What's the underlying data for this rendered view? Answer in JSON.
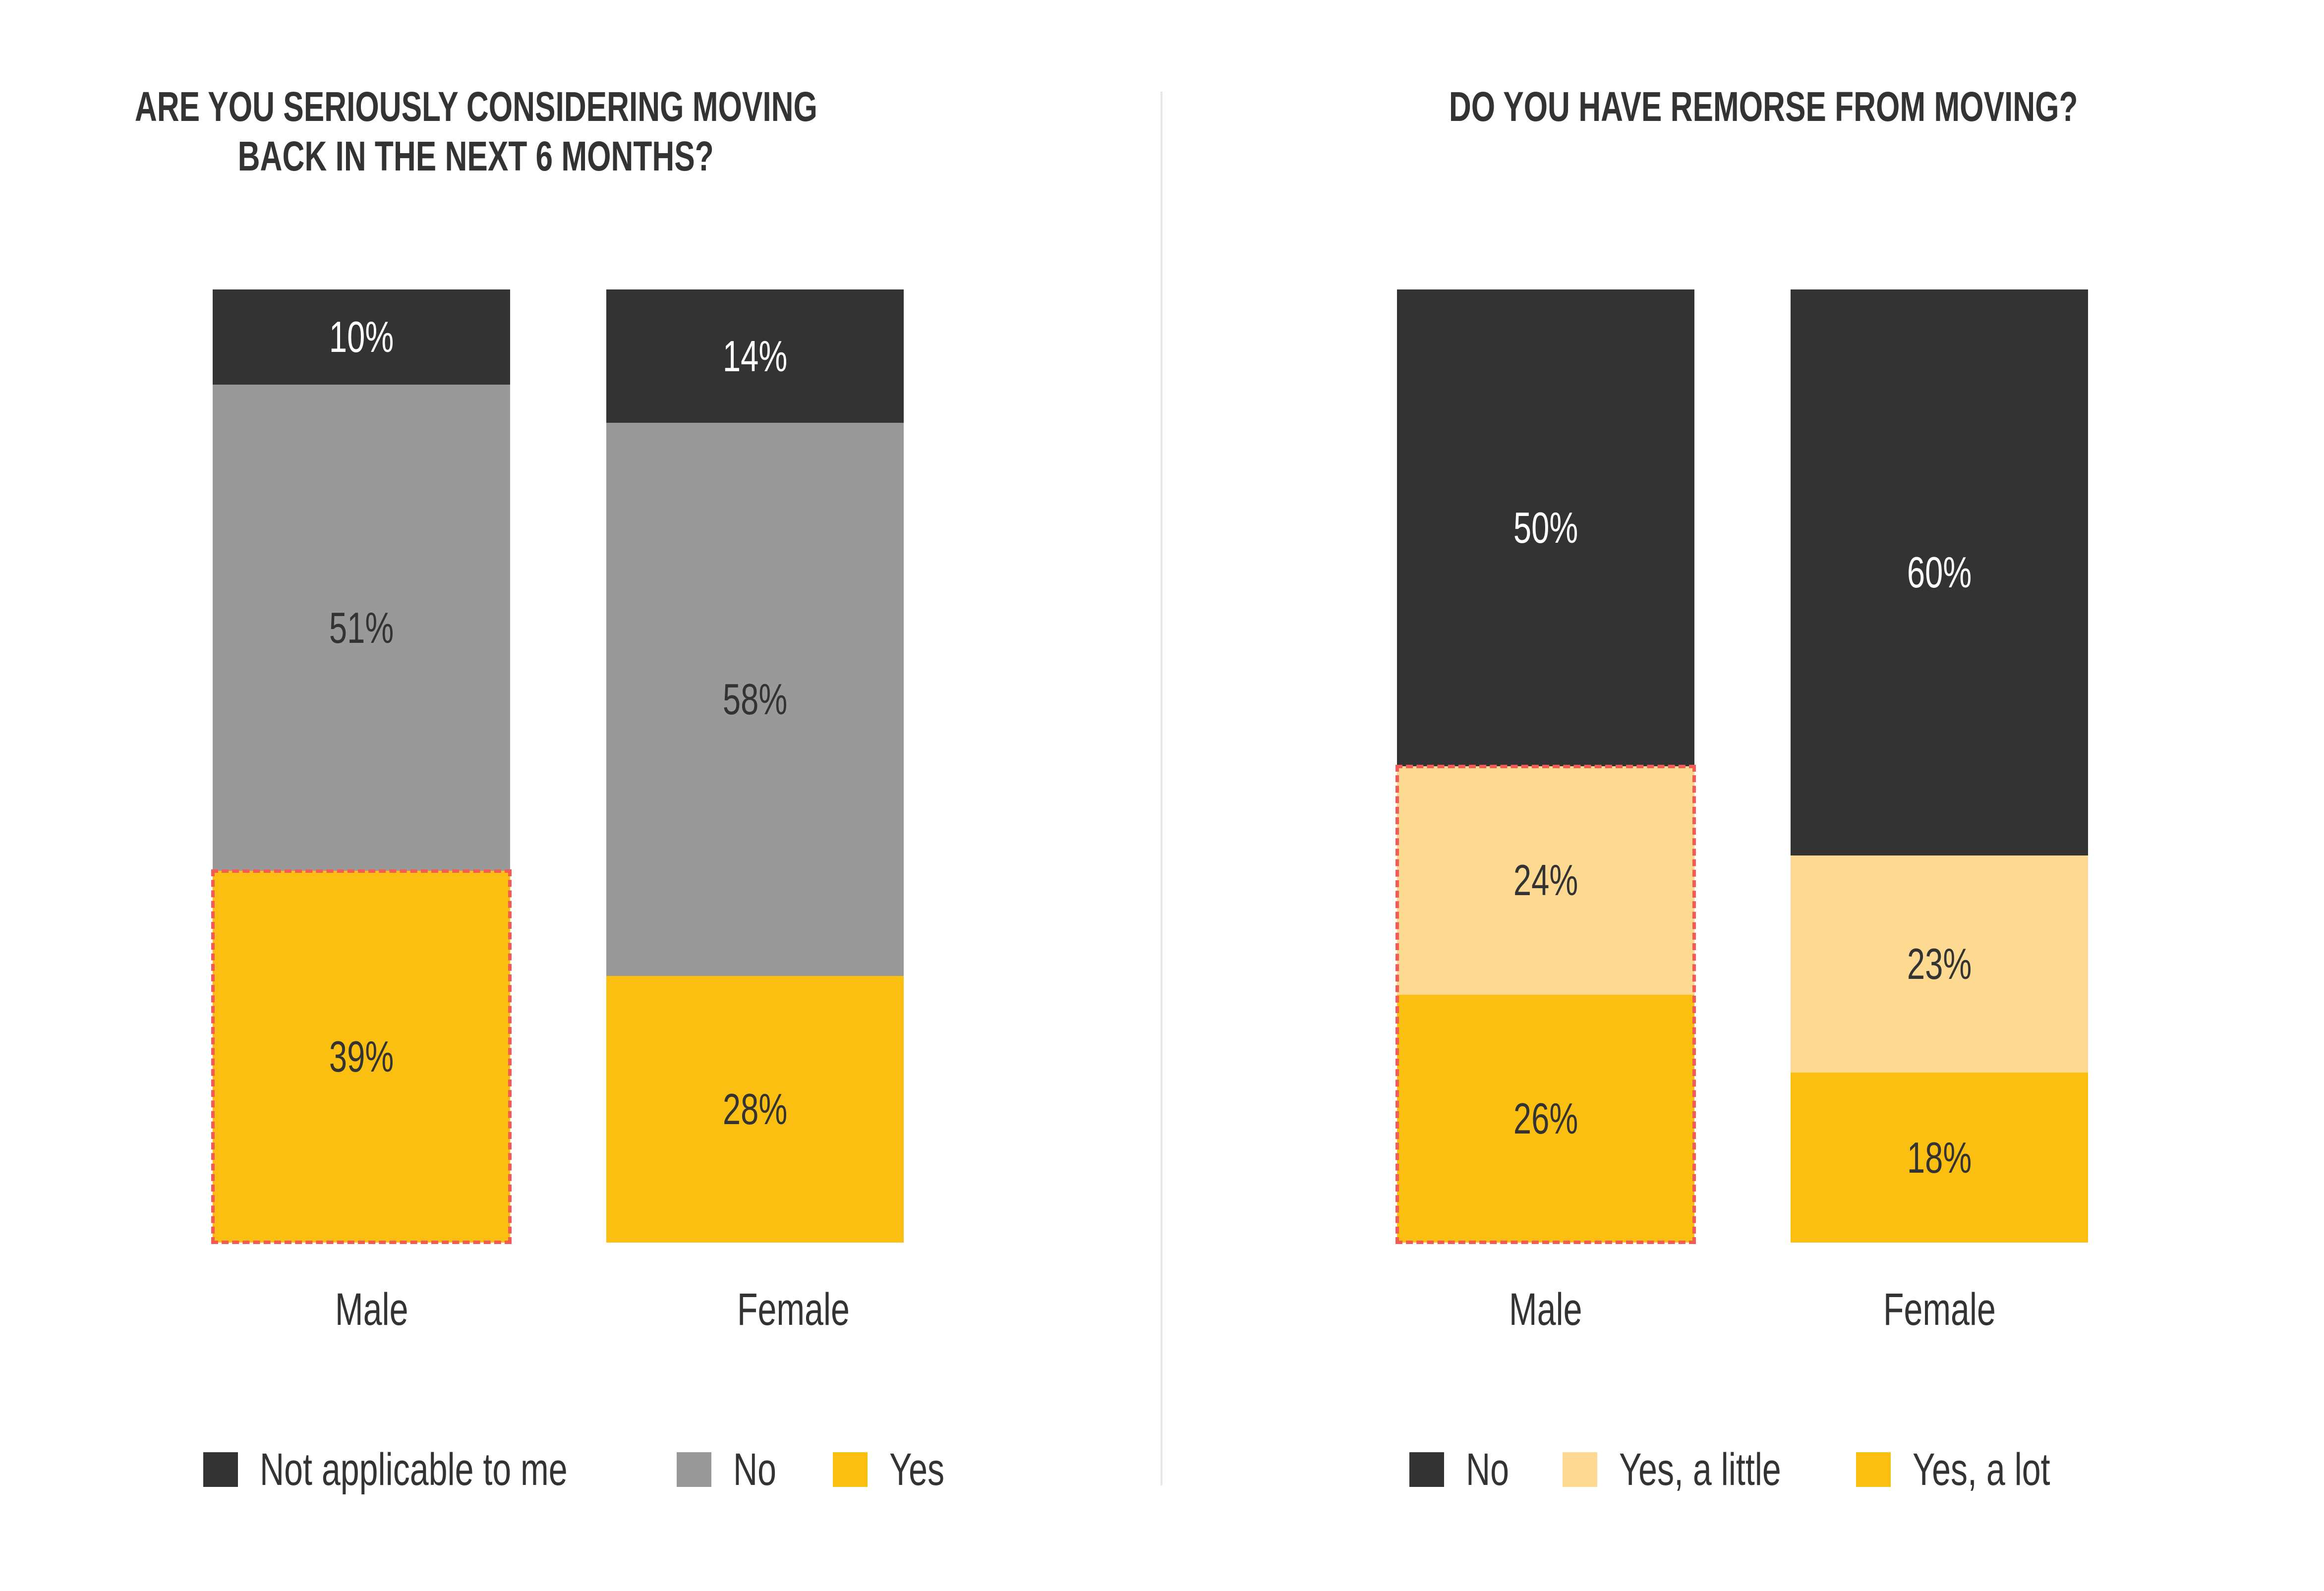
{
  "colors": {
    "dark": "#333333",
    "grey": "#999999",
    "yellow": "#FBBF12",
    "light_yellow": "#FDD992",
    "highlight": "#F25C54",
    "label_dark": "#333333",
    "label_light": "#ffffff"
  },
  "chart_data": [
    {
      "type": "bar",
      "stacked": true,
      "title": "ARE YOU SERIOUSLY CONSIDERING MOVING BACK IN THE NEXT 6 MONTHS?",
      "title_lines": [
        "ARE YOU SERIOUSLY CONSIDERING MOVING",
        "BACK IN THE NEXT 6 MONTHS?"
      ],
      "categories": [
        "Male",
        "Female"
      ],
      "series": [
        {
          "name": "Yes",
          "color": "#FBBF12",
          "values": [
            39,
            28
          ],
          "labels": [
            "39%",
            "28%"
          ]
        },
        {
          "name": "No",
          "color": "#999999",
          "values": [
            51,
            58
          ],
          "labels": [
            "51%",
            "58%"
          ]
        },
        {
          "name": "Not applicable to me",
          "color": "#333333",
          "values": [
            10,
            14
          ],
          "labels": [
            "10%",
            "14%"
          ]
        }
      ],
      "legend": [
        "Not applicable to me",
        "No",
        "Yes"
      ],
      "legend_position": "bottom",
      "highlight": {
        "category": "Male",
        "series": "Yes"
      },
      "ylim": [
        0,
        100
      ],
      "xlabel": "",
      "ylabel": "",
      "grid": false
    },
    {
      "type": "bar",
      "stacked": true,
      "title": "DO YOU HAVE REMORSE FROM MOVING?",
      "title_lines": [
        "DO YOU HAVE REMORSE FROM MOVING?"
      ],
      "categories": [
        "Male",
        "Female"
      ],
      "series": [
        {
          "name": "Yes, a lot",
          "color": "#FBBF12",
          "values": [
            26,
            18
          ],
          "labels": [
            "26%",
            "18%"
          ]
        },
        {
          "name": "Yes, a little",
          "color": "#FDD992",
          "values": [
            24,
            23
          ],
          "labels": [
            "24%",
            "23%"
          ]
        },
        {
          "name": "No",
          "color": "#333333",
          "values": [
            50,
            60
          ],
          "labels": [
            "50%",
            "60%"
          ]
        }
      ],
      "legend": [
        "No",
        "Yes, a little",
        "Yes, a lot"
      ],
      "legend_position": "bottom",
      "highlight": {
        "category": "Male",
        "series": [
          "Yes, a lot",
          "Yes, a little"
        ]
      },
      "ylim": [
        0,
        100
      ],
      "xlabel": "",
      "ylabel": "",
      "grid": false
    }
  ]
}
